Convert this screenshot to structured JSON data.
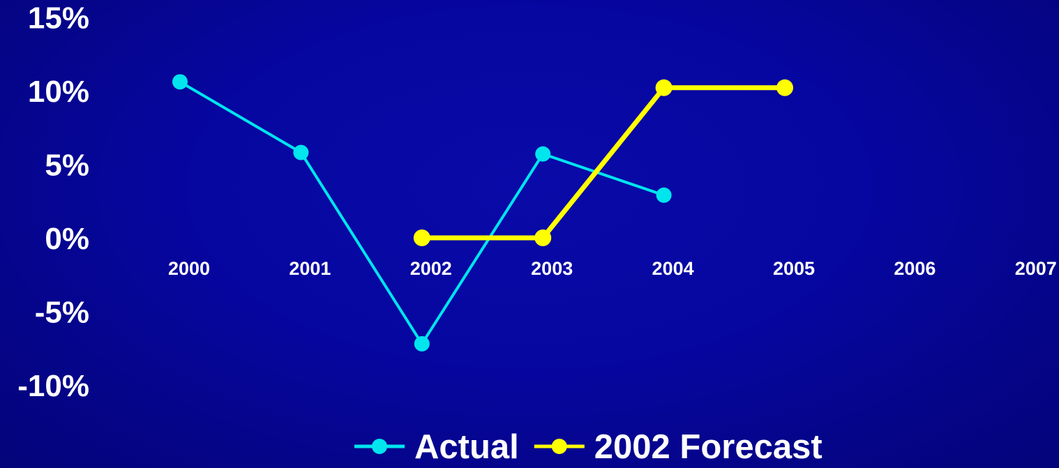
{
  "chart_data": {
    "type": "line",
    "categories": [
      "2000",
      "2001",
      "2002",
      "2003",
      "2004",
      "2005",
      "2006",
      "2007"
    ],
    "y_ticks": [
      "15%",
      "10%",
      "5%",
      "0%",
      "-5%",
      "-10%"
    ],
    "y_tick_values": [
      15,
      10,
      5,
      0,
      -5,
      -10
    ],
    "ylim": [
      -10,
      15
    ],
    "title": "",
    "xlabel": "",
    "ylabel": "",
    "grid": false,
    "legend_position": "bottom",
    "series": [
      {
        "name": "Actual",
        "color": "#00e5ee",
        "values": [
          10.6,
          5.8,
          -7.2,
          5.7,
          2.9,
          null,
          null,
          null
        ]
      },
      {
        "name": "2002 Forecast",
        "color": "#ffff00",
        "values": [
          null,
          null,
          0.0,
          0.0,
          10.2,
          10.2,
          null,
          null
        ]
      }
    ]
  }
}
